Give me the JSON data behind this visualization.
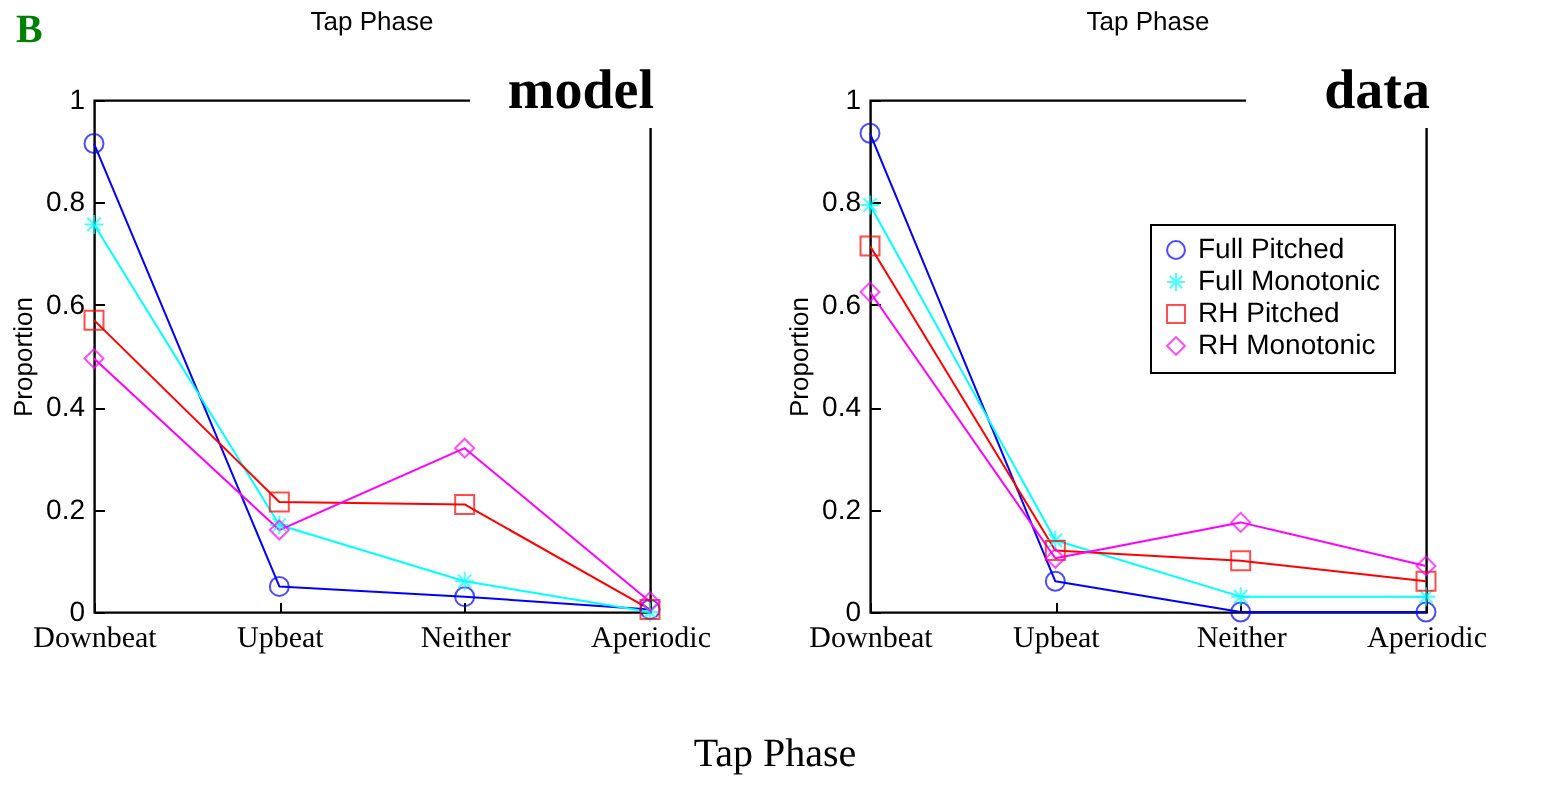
{
  "chart_data": [
    {
      "type": "line",
      "title": "Tap Phase",
      "ylabel": "Proportion",
      "xlabel": "Tap Phase",
      "annotations": [
        "B",
        "model"
      ],
      "categories": [
        "Downbeat",
        "Upbeat",
        "Neither",
        "Aperiodic"
      ],
      "ylim": [
        0,
        1
      ],
      "yticks": [
        0,
        0.2,
        0.4,
        0.6,
        0.8,
        1
      ],
      "series": [
        {
          "color": "#0000ff",
          "marker": "circle",
          "values": [
            0.915,
            0.05,
            0.03,
            0.005
          ]
        },
        {
          "color": "#00ffff",
          "marker": "cross",
          "values": [
            0.757,
            0.17,
            0.06,
            0
          ]
        },
        {
          "color": "#ff0000",
          "marker": "square",
          "values": [
            0.57,
            0.215,
            0.21,
            0.005
          ]
        },
        {
          "color": "#ff00ff",
          "marker": "diamond",
          "values": [
            0.495,
            0.16,
            0.32,
            0.02
          ]
        }
      ]
    },
    {
      "type": "line",
      "title": "Tap Phase",
      "ylabel": "Proportion",
      "annotations": [
        "data"
      ],
      "legend": "right",
      "categories": [
        "Downbeat",
        "Upbeat",
        "Neither",
        "Aperiodic"
      ],
      "ylim": [
        0,
        1
      ],
      "yticks": [
        0,
        0.2,
        0.4,
        0.6,
        0.8,
        1
      ],
      "series": [
        {
          "name": "Full Pitched",
          "color": "#0000ff",
          "marker": "circle",
          "values": [
            0.935,
            0.06,
            0,
            0
          ]
        },
        {
          "name": "Full Monotonic",
          "color": "#00ffff",
          "marker": "cross",
          "values": [
            0.795,
            0.14,
            0.03,
            0.03
          ]
        },
        {
          "name": "RH Pitched",
          "color": "#ff0000",
          "marker": "square",
          "values": [
            0.715,
            0.12,
            0.1,
            0.06
          ]
        },
        {
          "name": "RH Monotonic",
          "color": "#ff00ff",
          "marker": "diamond",
          "values": [
            0.625,
            0.105,
            0.175,
            0.09
          ]
        }
      ]
    }
  ]
}
